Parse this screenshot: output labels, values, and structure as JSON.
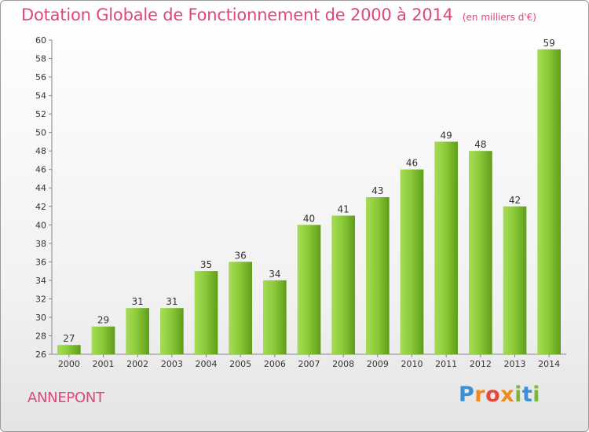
{
  "chart_data": {
    "type": "bar",
    "title": "Dotation Globale de Fonctionnement de 2000 à 2014",
    "unit": "(en milliers d'€)",
    "categories": [
      "2000",
      "2001",
      "2002",
      "2003",
      "2004",
      "2005",
      "2006",
      "2007",
      "2008",
      "2009",
      "2010",
      "2011",
      "2012",
      "2013",
      "2014"
    ],
    "values": [
      27,
      29,
      31,
      31,
      35,
      36,
      34,
      40,
      41,
      43,
      46,
      49,
      48,
      42,
      59
    ],
    "ylim": [
      26,
      60
    ],
    "yticks": [
      26,
      28,
      30,
      32,
      34,
      36,
      38,
      40,
      42,
      44,
      46,
      48,
      50,
      52,
      54,
      56,
      58,
      60
    ],
    "grid": false,
    "bar_color": "#8ccb3a"
  },
  "commune": "ANNEPONT",
  "logo": {
    "text": "Proxiti"
  }
}
